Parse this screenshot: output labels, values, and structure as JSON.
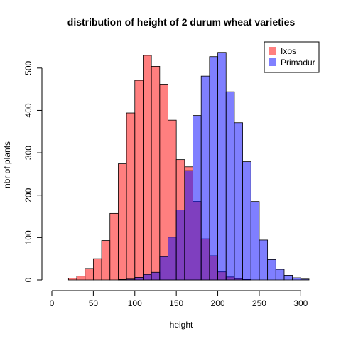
{
  "chart_data": {
    "type": "bar",
    "title": "distribution of height of 2 durum wheat varieties",
    "xlabel": "height",
    "ylabel": "nbr of plants",
    "xlim": [
      0,
      310
    ],
    "ylim": [
      0,
      550
    ],
    "x_ticks": [
      0,
      50,
      100,
      150,
      200,
      250,
      300
    ],
    "y_ticks": [
      0,
      100,
      200,
      300,
      400,
      500
    ],
    "bin_width": 10,
    "grid": false,
    "legend_position": "top-right",
    "series": [
      {
        "name": "Ixos",
        "color": "#ff8080",
        "bins": [
          [
            20,
            30,
            4
          ],
          [
            30,
            40,
            9
          ],
          [
            40,
            50,
            27
          ],
          [
            50,
            60,
            50
          ],
          [
            60,
            70,
            93
          ],
          [
            70,
            80,
            157
          ],
          [
            80,
            90,
            274
          ],
          [
            90,
            100,
            394
          ],
          [
            100,
            110,
            471
          ],
          [
            110,
            120,
            530
          ],
          [
            120,
            130,
            504
          ],
          [
            130,
            140,
            462
          ],
          [
            140,
            150,
            377
          ],
          [
            150,
            160,
            284
          ],
          [
            160,
            170,
            267
          ],
          [
            170,
            180,
            185
          ],
          [
            180,
            190,
            97
          ],
          [
            190,
            200,
            57
          ],
          [
            200,
            210,
            19
          ],
          [
            210,
            220,
            7
          ],
          [
            220,
            230,
            3
          ],
          [
            230,
            240,
            1
          ]
        ]
      },
      {
        "name": "Primadur",
        "color": "#8080ff",
        "bins": [
          [
            80,
            90,
            1
          ],
          [
            90,
            100,
            2
          ],
          [
            100,
            110,
            6
          ],
          [
            110,
            120,
            13
          ],
          [
            120,
            130,
            18
          ],
          [
            130,
            140,
            55
          ],
          [
            140,
            150,
            101
          ],
          [
            150,
            160,
            165
          ],
          [
            160,
            170,
            258
          ],
          [
            170,
            180,
            388
          ],
          [
            180,
            190,
            481
          ],
          [
            190,
            200,
            527
          ],
          [
            200,
            210,
            537
          ],
          [
            210,
            220,
            444
          ],
          [
            220,
            230,
            371
          ],
          [
            230,
            240,
            279
          ],
          [
            240,
            250,
            185
          ],
          [
            250,
            260,
            94
          ],
          [
            260,
            270,
            48
          ],
          [
            270,
            280,
            25
          ],
          [
            280,
            290,
            11
          ],
          [
            290,
            300,
            5
          ],
          [
            300,
            310,
            2
          ]
        ]
      }
    ]
  }
}
